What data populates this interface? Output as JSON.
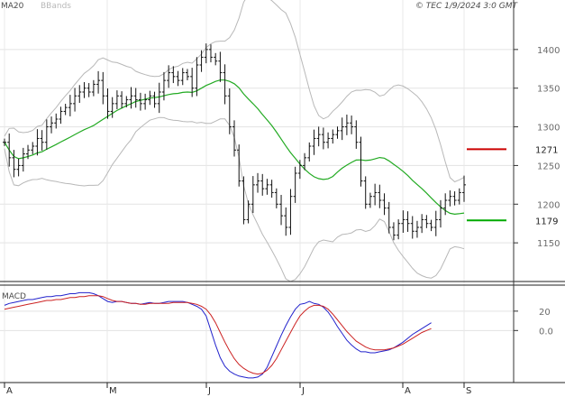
{
  "header": {
    "legend_ma": "MA20",
    "legend_bb": "BBands",
    "copyright": "© TEC 1/9/2024 3:0 GMT",
    "ma_color": "#22aa22",
    "bb_color": "#b8b8b8"
  },
  "chart_data": [
    {
      "type": "ohlc",
      "indicators": [
        "MA20",
        "BBands"
      ],
      "ylim": [
        1100,
        1450
      ],
      "yticks": [
        "1400",
        "1350",
        "1300",
        "1250",
        "1200",
        "1150"
      ],
      "yticks_values": [
        1400,
        1350,
        1300,
        1250,
        1200,
        1150
      ],
      "months": [
        "A",
        "M",
        "J",
        "J",
        "A",
        "S"
      ],
      "months_index": [
        0,
        22,
        43,
        63,
        85,
        106
      ],
      "levels": [
        {
          "label": "1271",
          "value": 1271,
          "color": "#cc0000"
        },
        {
          "label": "1179",
          "value": 1179,
          "color": "#00aa00"
        }
      ],
      "closes": [
        1280,
        1260,
        1245,
        1250,
        1265,
        1270,
        1275,
        1285,
        1280,
        1300,
        1305,
        1310,
        1320,
        1325,
        1330,
        1340,
        1345,
        1350,
        1345,
        1355,
        1360,
        1340,
        1320,
        1330,
        1340,
        1330,
        1335,
        1340,
        1335,
        1330,
        1335,
        1340,
        1330,
        1345,
        1360,
        1370,
        1365,
        1360,
        1370,
        1365,
        1350,
        1380,
        1390,
        1400,
        1390,
        1385,
        1370,
        1340,
        1300,
        1270,
        1230,
        1180,
        1200,
        1225,
        1230,
        1220,
        1225,
        1215,
        1200,
        1185,
        1170,
        1210,
        1240,
        1250,
        1260,
        1275,
        1285,
        1290,
        1280,
        1285,
        1290,
        1295,
        1300,
        1305,
        1300,
        1280,
        1230,
        1200,
        1210,
        1215,
        1205,
        1195,
        1170,
        1160,
        1175,
        1180,
        1175,
        1165,
        1170,
        1180,
        1175,
        1170,
        1180,
        1195,
        1205,
        1210,
        1205,
        1215,
        1225
      ]
    },
    {
      "type": "line",
      "title": "MACD",
      "ylim": [
        -50,
        45
      ],
      "yticks": [
        "20",
        "0.0"
      ],
      "yticks_values": [
        20,
        0
      ],
      "series": [
        {
          "color": "#2222cc",
          "values": [
            26,
            28,
            29,
            30,
            31,
            32,
            32,
            33,
            34,
            35,
            35,
            36,
            36,
            37,
            38,
            38,
            39,
            39,
            39,
            38,
            36,
            33,
            30,
            29,
            30,
            30,
            29,
            28,
            28,
            27,
            28,
            29,
            28,
            28,
            29,
            30,
            30,
            30,
            30,
            29,
            27,
            25,
            22,
            15,
            0,
            -15,
            -28,
            -37,
            -42,
            -45,
            -47,
            -48,
            -49,
            -49,
            -48,
            -45,
            -38,
            -27,
            -16,
            -5,
            5,
            14,
            22,
            27,
            28,
            30,
            28,
            27,
            24,
            19,
            12,
            4,
            -3,
            -10,
            -15,
            -19,
            -22,
            -22,
            -23,
            -23,
            -22,
            -21,
            -20,
            -18,
            -15,
            -12,
            -8,
            -4,
            -1,
            2,
            5,
            8
          ]
        },
        {
          "color": "#cc2222",
          "values": [
            22,
            23,
            24,
            25,
            26,
            27,
            28,
            29,
            30,
            31,
            31,
            32,
            32,
            33,
            34,
            34,
            35,
            35,
            36,
            36,
            36,
            35,
            33,
            31,
            30,
            30,
            29,
            28,
            28,
            27,
            27,
            28,
            28,
            28,
            28,
            28,
            29,
            29,
            29,
            29,
            28,
            27,
            25,
            22,
            16,
            8,
            -2,
            -12,
            -21,
            -29,
            -35,
            -39,
            -42,
            -44,
            -45,
            -44,
            -41,
            -36,
            -29,
            -20,
            -11,
            -2,
            7,
            15,
            20,
            24,
            26,
            26,
            25,
            22,
            17,
            11,
            5,
            -1,
            -6,
            -11,
            -14,
            -17,
            -19,
            -20,
            -20,
            -20,
            -19,
            -18,
            -16,
            -14,
            -11,
            -8,
            -5,
            -2,
            0,
            2
          ]
        }
      ]
    }
  ]
}
